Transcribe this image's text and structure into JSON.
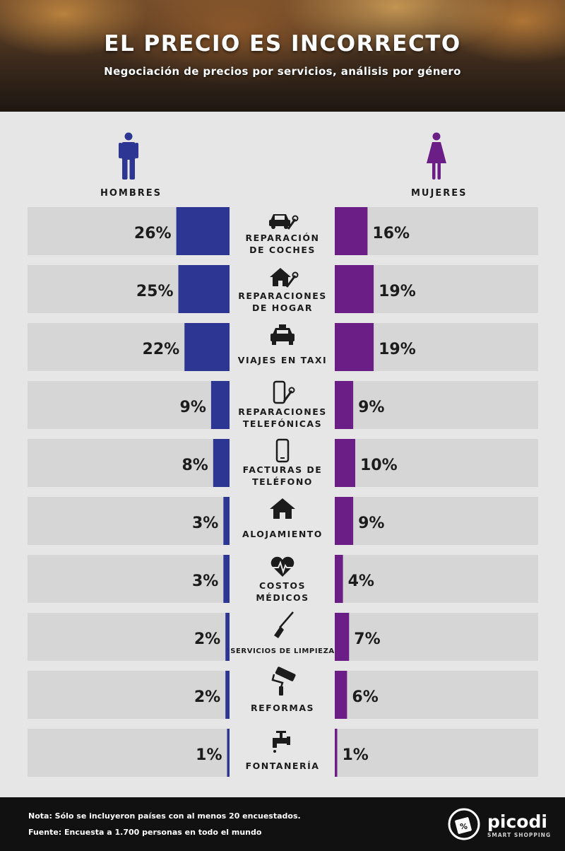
{
  "header": {
    "title": "EL PRECIO ES INCORRECTO",
    "subtitle": "Negociación de precios por servicios, análisis por género"
  },
  "legend": {
    "men_label": "HOMBRES",
    "women_label": "MUJERES"
  },
  "colors": {
    "men": "#2e3694",
    "women": "#6b1f86",
    "row_bg": "#d6d6d6",
    "page_bg": "#e6e6e6"
  },
  "chart_data": {
    "type": "bar",
    "orientation": "horizontal-diverging",
    "series": [
      {
        "name": "HOMBRES",
        "values": [
          26,
          25,
          22,
          9,
          8,
          3,
          3,
          2,
          2,
          1
        ]
      },
      {
        "name": "MUJERES",
        "values": [
          16,
          19,
          19,
          9,
          10,
          9,
          4,
          7,
          6,
          1
        ]
      }
    ],
    "value_labels_men": [
      "26%",
      "25%",
      "22%",
      "9%",
      "8%",
      "3%",
      "3%",
      "2%",
      "2%",
      "1%"
    ],
    "value_labels_women": [
      "16%",
      "19%",
      "19%",
      "9%",
      "10%",
      "9%",
      "4%",
      "7%",
      "6%",
      "1%"
    ],
    "categories": [
      {
        "lines": [
          "REPARACIÓN",
          "DE COCHES"
        ],
        "icon": "car-wrench-icon"
      },
      {
        "lines": [
          "REPARACIONES",
          "DE HOGAR"
        ],
        "icon": "house-wrench-icon"
      },
      {
        "lines": [
          "VIAJES EN TAXI"
        ],
        "icon": "taxi-icon"
      },
      {
        "lines": [
          "REPARACIONES",
          "TELEFÓNICAS"
        ],
        "icon": "phone-wrench-icon"
      },
      {
        "lines": [
          "FACTURAS DE",
          "TELÉFONO"
        ],
        "icon": "phone-icon"
      },
      {
        "lines": [
          "ALOJAMIENTO"
        ],
        "icon": "house-icon"
      },
      {
        "lines": [
          "COSTOS",
          "MÉDICOS"
        ],
        "icon": "heartbeat-icon"
      },
      {
        "lines": [
          "SERVICIOS DE LIMPIEZA"
        ],
        "icon": "broom-icon",
        "small": true
      },
      {
        "lines": [
          "REFORMAS"
        ],
        "icon": "paint-roller-icon"
      },
      {
        "lines": [
          "FONTANERÍA"
        ],
        "icon": "faucet-icon"
      }
    ]
  },
  "footer": {
    "note": "Nota: Sólo se incluyeron países con al menos 20 encuestados.",
    "source": "Fuente: Encuesta a 1.700 personas en todo el mundo",
    "logo_text": "picodi",
    "logo_sub": "SMART SHOPPING"
  }
}
